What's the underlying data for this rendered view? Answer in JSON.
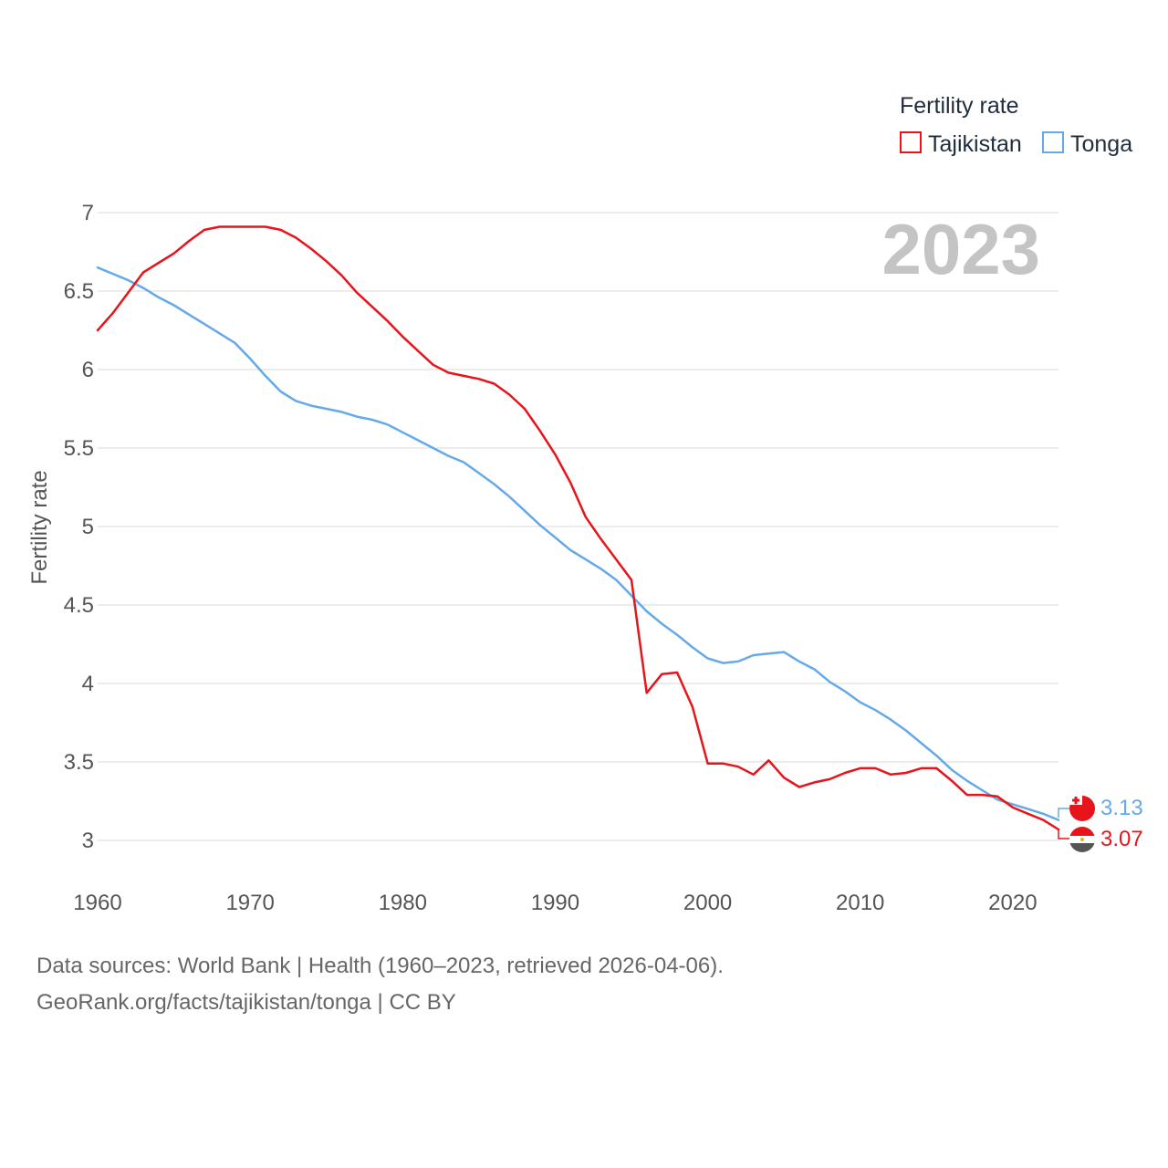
{
  "chart_data": {
    "type": "line",
    "title": "",
    "xlabel": "",
    "ylabel": "Fertility rate",
    "xlim": [
      1960,
      2023
    ],
    "ylim": [
      3,
      7
    ],
    "x_ticks": [
      1960,
      1970,
      1980,
      1990,
      2000,
      2010,
      2020
    ],
    "y_ticks": [
      3,
      3.5,
      4,
      4.5,
      5,
      5.5,
      6,
      6.5,
      7
    ],
    "y_tick_labels": [
      "3",
      "3.5",
      "4",
      "4.5",
      "5",
      "5.5",
      "6",
      "6.5",
      "7"
    ],
    "grid": true,
    "current_year": "2023",
    "legend": {
      "title": "Fertility rate",
      "position": "top-right",
      "entries": [
        {
          "name": "Tajikistan",
          "color": "#e8141b"
        },
        {
          "name": "Tonga",
          "color": "#66a9e8"
        }
      ]
    },
    "x": [
      1960,
      1961,
      1962,
      1963,
      1964,
      1965,
      1966,
      1967,
      1968,
      1969,
      1970,
      1971,
      1972,
      1973,
      1974,
      1975,
      1976,
      1977,
      1978,
      1979,
      1980,
      1981,
      1982,
      1983,
      1984,
      1985,
      1986,
      1987,
      1988,
      1989,
      1990,
      1991,
      1992,
      1993,
      1994,
      1995,
      1996,
      1997,
      1998,
      1999,
      2000,
      2001,
      2002,
      2003,
      2004,
      2005,
      2006,
      2007,
      2008,
      2009,
      2010,
      2011,
      2012,
      2013,
      2014,
      2015,
      2016,
      2017,
      2018,
      2019,
      2020,
      2021,
      2022,
      2023
    ],
    "series": [
      {
        "name": "Tajikistan",
        "color": "#e8141b",
        "end_label": "3.07",
        "values": [
          6.25,
          6.36,
          6.49,
          6.62,
          6.68,
          6.74,
          6.82,
          6.89,
          6.91,
          6.91,
          6.91,
          6.91,
          6.89,
          6.84,
          6.77,
          6.69,
          6.6,
          6.49,
          6.4,
          6.31,
          6.21,
          6.12,
          6.03,
          5.98,
          5.96,
          5.94,
          5.91,
          5.84,
          5.75,
          5.61,
          5.46,
          5.28,
          5.06,
          4.92,
          4.79,
          4.66,
          3.94,
          4.06,
          4.07,
          3.85,
          3.49,
          3.49,
          3.47,
          3.42,
          3.51,
          3.4,
          3.34,
          3.37,
          3.39,
          3.43,
          3.46,
          3.46,
          3.42,
          3.43,
          3.46,
          3.46,
          3.38,
          3.29,
          3.29,
          3.28,
          3.21,
          3.17,
          3.13,
          3.07
        ]
      },
      {
        "name": "Tonga",
        "color": "#66a9e8",
        "end_label": "3.13",
        "values": [
          6.65,
          6.61,
          6.57,
          6.52,
          6.46,
          6.41,
          6.35,
          6.29,
          6.23,
          6.17,
          6.07,
          5.96,
          5.86,
          5.8,
          5.77,
          5.75,
          5.73,
          5.7,
          5.68,
          5.65,
          5.6,
          5.55,
          5.5,
          5.45,
          5.41,
          5.34,
          5.27,
          5.19,
          5.1,
          5.01,
          4.93,
          4.85,
          4.79,
          4.73,
          4.66,
          4.56,
          4.46,
          4.38,
          4.31,
          4.23,
          4.16,
          4.13,
          4.14,
          4.18,
          4.19,
          4.2,
          4.14,
          4.09,
          4.01,
          3.95,
          3.88,
          3.83,
          3.77,
          3.7,
          3.62,
          3.54,
          3.45,
          3.38,
          3.32,
          3.26,
          3.23,
          3.2,
          3.17,
          3.13
        ]
      }
    ]
  },
  "footer": {
    "line1": "Data sources: World Bank | Health (1960–2023, retrieved 2026-04-06).",
    "line2": "GeoRank.org/facts/tajikistan/tonga | CC BY"
  }
}
